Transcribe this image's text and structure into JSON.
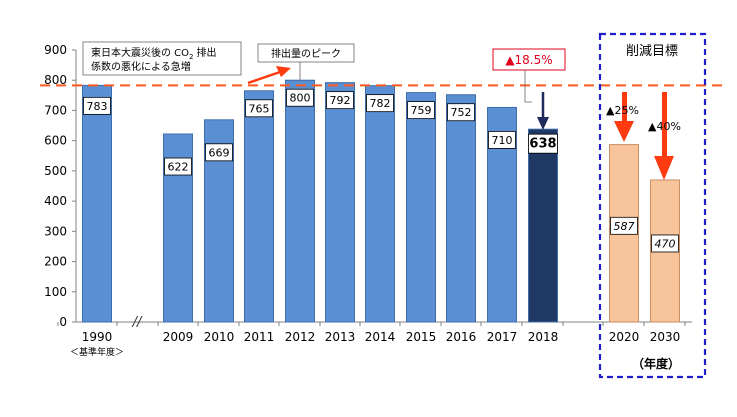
{
  "chart_data": {
    "type": "bar",
    "categories": [
      "1990",
      "2009",
      "2010",
      "2011",
      "2012",
      "2013",
      "2014",
      "2015",
      "2016",
      "2017",
      "2018",
      "2020",
      "2030"
    ],
    "values": [
      783,
      622,
      669,
      765,
      800,
      792,
      782,
      759,
      752,
      710,
      638,
      587,
      470
    ],
    "value_labels": [
      "783",
      "622",
      "669",
      "765",
      "800",
      "792",
      "782",
      "759",
      "752",
      "710",
      "638",
      "587",
      "470"
    ],
    "bar_kinds": [
      "actual",
      "actual",
      "actual",
      "actual",
      "actual",
      "actual",
      "actual",
      "actual",
      "actual",
      "actual",
      "latest",
      "target",
      "target"
    ],
    "ylim": [
      0,
      900
    ],
    "yticks": [
      0,
      100,
      200,
      300,
      400,
      500,
      600,
      700,
      800,
      900
    ],
    "xlabel_sub": "＜基準年度＞",
    "axis_break_mark": "//",
    "reference_line_value": 783,
    "unit_label": "（年度）",
    "colors": {
      "actual": "#5B8FD4",
      "latest": "#1F3864",
      "target": "#F8C49C",
      "dashed_line": "#FF5A1F",
      "arrow_red": "#FF3B0F",
      "arrow_navy": "#1F2A5A",
      "target_box": "#1F1FD0",
      "reduction_text": "#E0001B"
    },
    "annotations": {
      "note_line1": "東日本大震災後の CO",
      "note_sub": "2",
      "note_line1_tail": "排出",
      "note_line2": "係数の悪化による急増",
      "peak_label": "排出量のピーク",
      "reduction_2018": "▲18.5%",
      "target_title": "削減目標",
      "reduction_2020": "▲25%",
      "reduction_2030": "▲40%"
    }
  }
}
